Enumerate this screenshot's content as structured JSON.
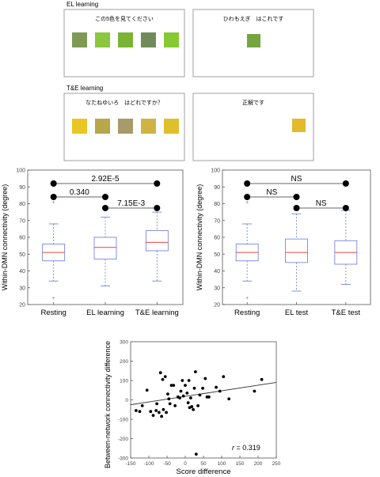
{
  "panels": {
    "el": {
      "label": "EL learning",
      "left_prompt": "この5色を見てください",
      "right_prompt": "ひわもえぎ　はこれです",
      "swatches": [
        "#7e9a54",
        "#8dc63f",
        "#7bb335",
        "#718a5b",
        "#86c933"
      ],
      "answer_swatch": "#74a541"
    },
    "te": {
      "label": "T&E learning",
      "left_prompt": "なたねゆいろ　はどれですか？",
      "right_prompt": "正解です",
      "swatches": [
        "#e9c624",
        "#b9a64a",
        "#a89a6a",
        "#cfb441",
        "#e0bf2e"
      ],
      "answer_swatch": "#e2ba2b"
    }
  },
  "colors": {
    "box": "#6677dd",
    "median": "#ee4444",
    "outlier": "#ee4444",
    "whisker": "#6677dd"
  },
  "chart_data": [
    {
      "type": "box",
      "ylabel": "Within-DMN connectivity (degree)",
      "ylim": [
        20,
        100
      ],
      "yticks": [
        20,
        30,
        40,
        50,
        60,
        70,
        80,
        90,
        100
      ],
      "categories": [
        "Resting",
        "EL learning",
        "T&E learning"
      ],
      "boxes": [
        {
          "min": 34,
          "q1": 46,
          "median": 51,
          "q3": 56,
          "max": 68,
          "outliers": [
            81,
            24
          ]
        },
        {
          "min": 31,
          "q1": 47,
          "median": 54,
          "q3": 60,
          "max": 72,
          "outliers": []
        },
        {
          "min": 34,
          "q1": 52,
          "median": 57,
          "q3": 64,
          "max": 75,
          "outliers": []
        }
      ],
      "comparisons": [
        {
          "from": 0,
          "to": 2,
          "label": "2.92E-5",
          "level": 3
        },
        {
          "from": 0,
          "to": 1,
          "label": "0.340",
          "level": 2
        },
        {
          "from": 1,
          "to": 2,
          "label": "7.15E-3",
          "level": 1
        }
      ]
    },
    {
      "type": "box",
      "ylabel": "Within-DMN connectivity (degree)",
      "ylim": [
        20,
        100
      ],
      "yticks": [
        20,
        30,
        40,
        50,
        60,
        70,
        80,
        90,
        100
      ],
      "categories": [
        "Resting",
        "EL test",
        "T&E test"
      ],
      "boxes": [
        {
          "min": 34,
          "q1": 46,
          "median": 51,
          "q3": 56,
          "max": 68,
          "outliers": [
            81,
            24
          ]
        },
        {
          "min": 28,
          "q1": 45,
          "median": 51,
          "q3": 59,
          "max": 74,
          "outliers": []
        },
        {
          "min": 32,
          "q1": 44,
          "median": 51,
          "q3": 58,
          "max": 76,
          "outliers": []
        }
      ],
      "comparisons": [
        {
          "from": 0,
          "to": 2,
          "label": "NS",
          "level": 3
        },
        {
          "from": 0,
          "to": 1,
          "label": "NS",
          "level": 2
        },
        {
          "from": 1,
          "to": 2,
          "label": "NS",
          "level": 1
        }
      ]
    },
    {
      "type": "scatter",
      "xlabel": "Score difference",
      "ylabel": "Between-network connectivity difference",
      "xlim": [
        -150,
        250
      ],
      "ylim": [
        -300,
        300
      ],
      "xticks": [
        -150,
        -100,
        -50,
        0,
        50,
        100,
        150,
        200,
        250
      ],
      "yticks": [
        -300,
        -200,
        -100,
        0,
        100,
        200,
        300
      ],
      "annotation": {
        "var": "r",
        "text": " = 0.319"
      },
      "fit": {
        "x0": -150,
        "y0": -25,
        "x1": 250,
        "y1": 90
      },
      "points": [
        [
          -135,
          -55
        ],
        [
          -125,
          -60
        ],
        [
          -118,
          -30
        ],
        [
          -105,
          50
        ],
        [
          -95,
          -60
        ],
        [
          -88,
          -80
        ],
        [
          -80,
          -55
        ],
        [
          -78,
          -20
        ],
        [
          -72,
          -65
        ],
        [
          -68,
          140
        ],
        [
          -65,
          -85
        ],
        [
          -62,
          105
        ],
        [
          -60,
          -50
        ],
        [
          -55,
          120
        ],
        [
          -52,
          -65
        ],
        [
          -48,
          30
        ],
        [
          -45,
          5
        ],
        [
          -42,
          -20
        ],
        [
          -38,
          75
        ],
        [
          -32,
          75
        ],
        [
          -28,
          -30
        ],
        [
          -20,
          15
        ],
        [
          -15,
          10
        ],
        [
          -12,
          45
        ],
        [
          -8,
          100
        ],
        [
          -5,
          20
        ],
        [
          0,
          75
        ],
        [
          5,
          35
        ],
        [
          8,
          -15
        ],
        [
          10,
          100
        ],
        [
          12,
          -40
        ],
        [
          15,
          10
        ],
        [
          18,
          -35
        ],
        [
          22,
          -50
        ],
        [
          25,
          60
        ],
        [
          28,
          145
        ],
        [
          30,
          -280
        ],
        [
          35,
          -30
        ],
        [
          40,
          25
        ],
        [
          48,
          60
        ],
        [
          55,
          110
        ],
        [
          60,
          15
        ],
        [
          65,
          15
        ],
        [
          85,
          65
        ],
        [
          95,
          45
        ],
        [
          105,
          120
        ],
        [
          120,
          5
        ],
        [
          190,
          45
        ],
        [
          210,
          105
        ]
      ]
    }
  ]
}
